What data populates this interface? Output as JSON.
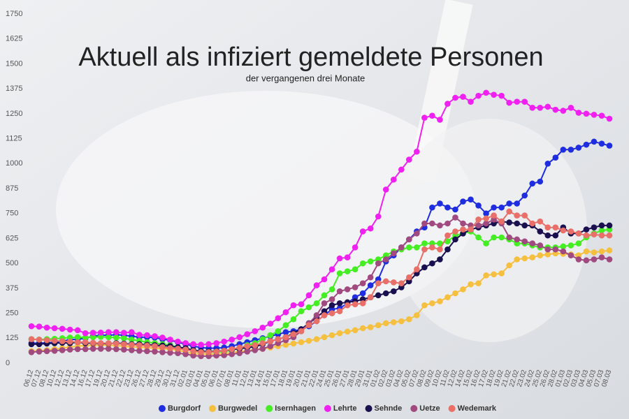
{
  "chart_data": {
    "type": "line",
    "title": "Aktuell als infiziert gemeldete Personen",
    "subtitle": "der vergangenen drei Monate",
    "categories": [
      "06.12",
      "07.12",
      "08.12",
      "10.12",
      "12.12",
      "13.12",
      "14.12",
      "16.12",
      "17.12",
      "19.12",
      "20.12",
      "21.12",
      "22.12",
      "23.12",
      "26.12",
      "27.12",
      "28.12",
      "29.12",
      "30.12",
      "31.12",
      "02.01",
      "03.01",
      "04.01",
      "05.01",
      "06.01",
      "07.01",
      "08.01",
      "11.01",
      "12.01",
      "13.01",
      "14.01",
      "15.01",
      "17.01",
      "18.01",
      "19.01",
      "20.01",
      "21.01",
      "22.01",
      "24.01",
      "25.01",
      "26.01",
      "27.01",
      "28.01",
      "29.01",
      "31.01",
      "01.02",
      "02.02",
      "03.02",
      "04.02",
      "05.02",
      "07.02",
      "08.02",
      "09.02",
      "10.02",
      "11.02",
      "12.02",
      "14.02",
      "15.02",
      "16.02",
      "17.02",
      "18.02",
      "19.02",
      "21.02",
      "22.02",
      "23.02",
      "24.02",
      "25.02",
      "26.02",
      "28.02",
      "01.03",
      "02.03",
      "03.03",
      "04.03",
      "05.03",
      "07.03",
      "08.03"
    ],
    "series": [
      {
        "name": "Burgdorf",
        "color": "#1f2de0",
        "values": [
          100,
          100,
          102,
          105,
          110,
          118,
          120,
          125,
          135,
          140,
          140,
          142,
          140,
          135,
          130,
          130,
          128,
          120,
          115,
          105,
          95,
          85,
          78,
          75,
          75,
          78,
          85,
          95,
          105,
          115,
          125,
          135,
          145,
          155,
          160,
          170,
          185,
          210,
          240,
          270,
          275,
          300,
          330,
          350,
          390,
          420,
          510,
          540,
          580,
          620,
          660,
          680,
          780,
          800,
          780,
          770,
          810,
          820,
          790,
          750,
          780,
          780,
          800,
          800,
          840,
          900,
          910,
          1000,
          1030,
          1070,
          1070,
          1080,
          1095,
          1110,
          1100,
          1090
        ]
      },
      {
        "name": "Burgwedel",
        "color": "#f5c040",
        "values": [
          60,
          62,
          65,
          70,
          75,
          80,
          85,
          88,
          90,
          90,
          90,
          88,
          85,
          82,
          80,
          78,
          75,
          72,
          70,
          65,
          55,
          48,
          45,
          45,
          45,
          48,
          52,
          58,
          62,
          68,
          72,
          78,
          85,
          92,
          98,
          105,
          112,
          120,
          130,
          140,
          150,
          158,
          165,
          175,
          180,
          190,
          200,
          205,
          210,
          220,
          240,
          290,
          300,
          310,
          330,
          350,
          370,
          395,
          400,
          440,
          445,
          450,
          490,
          520,
          525,
          530,
          540,
          545,
          550,
          548,
          545,
          540,
          560,
          555,
          560,
          565
        ]
      },
      {
        "name": "Isernhagen",
        "color": "#44ee22",
        "values": [
          120,
          118,
          120,
          122,
          125,
          128,
          130,
          128,
          130,
          132,
          130,
          128,
          125,
          118,
          112,
          105,
          100,
          95,
          90,
          80,
          70,
          60,
          55,
          55,
          55,
          58,
          65,
          75,
          90,
          100,
          120,
          140,
          160,
          190,
          220,
          260,
          280,
          300,
          340,
          370,
          450,
          460,
          470,
          500,
          510,
          520,
          540,
          560,
          570,
          580,
          580,
          600,
          600,
          600,
          610,
          640,
          650,
          660,
          630,
          600,
          630,
          630,
          620,
          600,
          600,
          590,
          580,
          580,
          580,
          585,
          590,
          600,
          630,
          650,
          665,
          670
        ]
      },
      {
        "name": "Lehrte",
        "color": "#f020f0",
        "values": [
          185,
          183,
          178,
          175,
          172,
          168,
          165,
          150,
          152,
          153,
          155,
          155,
          152,
          155,
          142,
          140,
          135,
          128,
          118,
          108,
          100,
          95,
          92,
          95,
          100,
          108,
          118,
          130,
          145,
          160,
          178,
          198,
          225,
          255,
          290,
          295,
          340,
          390,
          420,
          470,
          525,
          530,
          580,
          660,
          675,
          735,
          870,
          920,
          970,
          1020,
          1060,
          1230,
          1240,
          1220,
          1300,
          1330,
          1335,
          1310,
          1340,
          1355,
          1345,
          1340,
          1305,
          1310,
          1310,
          1280,
          1280,
          1285,
          1270,
          1265,
          1280,
          1255,
          1250,
          1245,
          1240,
          1225
        ]
      },
      {
        "name": "Sehnde",
        "color": "#1a1050",
        "values": [
          95,
          95,
          98,
          100,
          102,
          100,
          105,
          100,
          100,
          98,
          98,
          100,
          98,
          95,
          95,
          92,
          90,
          88,
          85,
          80,
          75,
          65,
          60,
          58,
          60,
          62,
          68,
          72,
          78,
          82,
          95,
          110,
          120,
          130,
          150,
          170,
          200,
          230,
          260,
          290,
          300,
          305,
          310,
          320,
          330,
          340,
          350,
          360,
          380,
          410,
          450,
          480,
          500,
          520,
          570,
          620,
          650,
          670,
          680,
          690,
          700,
          710,
          705,
          700,
          690,
          690,
          660,
          640,
          640,
          680,
          650,
          650,
          670,
          680,
          690,
          690
        ]
      },
      {
        "name": "Uetze",
        "color": "#a04a80",
        "values": [
          55,
          58,
          60,
          62,
          65,
          68,
          70,
          70,
          72,
          72,
          72,
          70,
          68,
          65,
          62,
          60,
          58,
          55,
          52,
          50,
          45,
          38,
          35,
          35,
          38,
          40,
          45,
          50,
          58,
          65,
          72,
          85,
          100,
          115,
          130,
          160,
          200,
          240,
          300,
          320,
          360,
          370,
          380,
          400,
          430,
          500,
          520,
          550,
          580,
          620,
          650,
          700,
          700,
          690,
          700,
          730,
          700,
          690,
          690,
          700,
          720,
          700,
          630,
          620,
          610,
          600,
          590,
          570,
          570,
          560,
          540,
          520,
          515,
          520,
          530,
          520
        ]
      },
      {
        "name": "Wedemark",
        "color": "#e87068",
        "values": [
          120,
          118,
          115,
          112,
          110,
          108,
          105,
          105,
          102,
          100,
          100,
          98,
          95,
          92,
          90,
          88,
          85,
          80,
          75,
          72,
          68,
          60,
          55,
          55,
          58,
          62,
          70,
          78,
          85,
          90,
          100,
          110,
          120,
          130,
          145,
          160,
          190,
          210,
          240,
          250,
          260,
          290,
          295,
          300,
          330,
          400,
          410,
          405,
          400,
          430,
          470,
          570,
          580,
          570,
          640,
          660,
          670,
          670,
          720,
          725,
          740,
          710,
          760,
          740,
          740,
          700,
          710,
          680,
          680,
          665,
          660,
          650,
          640,
          645,
          640,
          640
        ]
      }
    ],
    "ylim": [
      0,
      1750
    ],
    "yticks": [
      0,
      125,
      250,
      375,
      500,
      625,
      750,
      875,
      1000,
      1125,
      1250,
      1375,
      1500,
      1625,
      1750
    ],
    "grid": false
  }
}
